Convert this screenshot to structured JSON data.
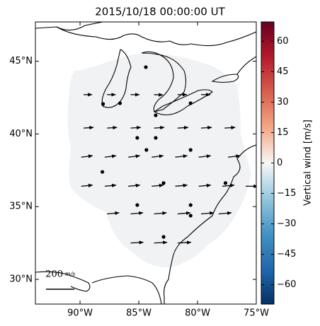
{
  "chart_data": {
    "type": "vector-map",
    "title": "2015/10/18 00:00:00 UT",
    "colorbar_label": "Vertical wind [m/s]",
    "xlim": [
      -93.8,
      -75
    ],
    "ylim": [
      28.3,
      47.7
    ],
    "xticks": [
      {
        "value": -90,
        "label": "90°W"
      },
      {
        "value": -85,
        "label": "85°W"
      },
      {
        "value": -80,
        "label": "80°W"
      },
      {
        "value": -75,
        "label": "75°W"
      }
    ],
    "yticks": [
      {
        "value": 30,
        "label": "30°N"
      },
      {
        "value": 35,
        "label": "35°N"
      },
      {
        "value": 40,
        "label": "40°N"
      },
      {
        "value": 45,
        "label": "45°N"
      }
    ],
    "clim": [
      -69.5,
      69.5
    ],
    "cticks": [
      {
        "value": -60,
        "label": "−60"
      },
      {
        "value": -45,
        "label": "−45"
      },
      {
        "value": -30,
        "label": "−30"
      },
      {
        "value": -15,
        "label": "−15"
      },
      0,
      15,
      30,
      45,
      60
    ],
    "scale_value": 200,
    "scale_unit": "m/s",
    "stations": {
      "lon": [
        -88.04,
        -86.6,
        -84.4,
        -83.56,
        -80.59,
        -85.13,
        -83.56,
        -84.35,
        -80.59,
        -88.1,
        -82.89,
        -77.62,
        -85.13,
        -80.59,
        -80.59,
        -82.89
      ],
      "lat": [
        42.06,
        42.11,
        44.59,
        41.28,
        42.11,
        39.73,
        39.73,
        38.9,
        38.9,
        37.39,
        36.62,
        36.62,
        35.11,
        35.11,
        34.38,
        32.92
      ]
    },
    "arrows": {
      "lon": [
        -89.7,
        -87.7,
        -85.7,
        -83.7,
        -81.7,
        -79.7,
        -89.7,
        -87.7,
        -85.7,
        -83.7,
        -81.7,
        -79.7,
        -77.7,
        -89.9,
        -87.9,
        -85.9,
        -83.9,
        -81.9,
        -79.9,
        -77.4,
        -89.9,
        -87.9,
        -85.9,
        -83.9,
        -81.9,
        -79.9,
        -77.9,
        -75.9,
        -87.7,
        -85.7,
        -83.7,
        -81.7,
        -79.7,
        -78.2,
        -85.7,
        -83.7,
        -81.7
      ],
      "lat": [
        42.7,
        42.7,
        42.7,
        42.7,
        42.7,
        42.7,
        40.4,
        40.4,
        40.4,
        40.4,
        40.4,
        40.4,
        40.4,
        38.4,
        38.4,
        38.4,
        38.4,
        38.4,
        38.4,
        38.4,
        36.4,
        36.4,
        36.4,
        36.4,
        36.4,
        36.4,
        36.4,
        36.4,
        34.5,
        34.5,
        34.5,
        34.5,
        34.5,
        34.5,
        32.5,
        32.5,
        32.5
      ],
      "u": [
        60,
        60,
        62,
        62,
        65,
        65,
        70,
        70,
        72,
        72,
        75,
        75,
        75,
        80,
        80,
        82,
        82,
        85,
        85,
        85,
        80,
        80,
        82,
        82,
        85,
        85,
        85,
        85,
        85,
        88,
        88,
        90,
        90,
        90,
        90,
        92,
        95
      ],
      "v": [
        0,
        0,
        0,
        -2,
        0,
        0,
        5,
        5,
        5,
        5,
        5,
        5,
        5,
        10,
        10,
        10,
        10,
        10,
        10,
        10,
        8,
        8,
        8,
        8,
        8,
        8,
        8,
        0,
        8,
        8,
        8,
        8,
        8,
        8,
        5,
        5,
        5
      ]
    }
  }
}
